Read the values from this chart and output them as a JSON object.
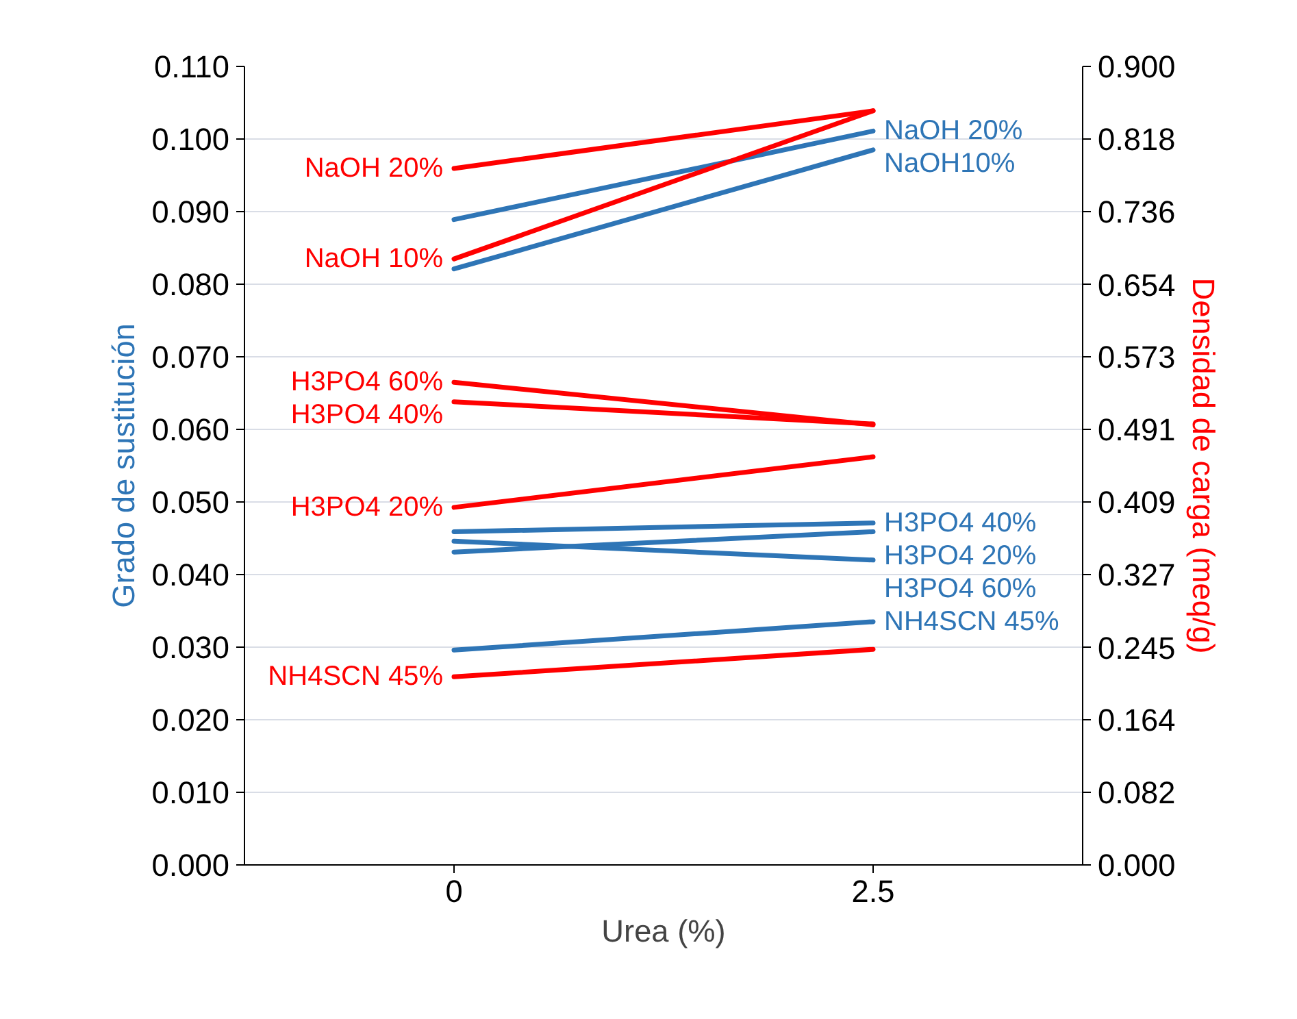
{
  "chart_data": {
    "type": "line",
    "xlabel": "Urea (%)",
    "ylabel": "Grado de sustitución",
    "y2label": "Densidad de carga (meq/g)",
    "categories": [
      "0",
      "2.5"
    ],
    "ylim": [
      0,
      0.11
    ],
    "yticks": [
      {
        "value": 0,
        "label": "0.000"
      },
      {
        "value": 0.01,
        "label": "0.010"
      },
      {
        "value": 0.02,
        "label": "0.020"
      },
      {
        "value": 0.03,
        "label": "0.030"
      },
      {
        "value": 0.04,
        "label": "0.040"
      },
      {
        "value": 0.05,
        "label": "0.050"
      },
      {
        "value": 0.06,
        "label": "0.060"
      },
      {
        "value": 0.07,
        "label": "0.070"
      },
      {
        "value": 0.08,
        "label": "0.080"
      },
      {
        "value": 0.09,
        "label": "0.090"
      },
      {
        "value": 0.1,
        "label": "0.100"
      },
      {
        "value": 0.11,
        "label": "0.110"
      }
    ],
    "y2lim": [
      0,
      0.9
    ],
    "y2ticks": [
      {
        "value": 0,
        "label": "0.000"
      },
      {
        "value": 0.082,
        "label": "0.082"
      },
      {
        "value": 0.164,
        "label": "0.164"
      },
      {
        "value": 0.245,
        "label": "0.245"
      },
      {
        "value": 0.327,
        "label": "0.327"
      },
      {
        "value": 0.409,
        "label": "0.409"
      },
      {
        "value": 0.491,
        "label": "0.491"
      },
      {
        "value": 0.573,
        "label": "0.573"
      },
      {
        "value": 0.654,
        "label": "0.654"
      },
      {
        "value": 0.736,
        "label": "0.736"
      },
      {
        "value": 0.818,
        "label": "0.818"
      },
      {
        "value": 0.9,
        "label": "0.900"
      }
    ],
    "grid": "y",
    "legend": false,
    "marker": "none",
    "line_style": "solid",
    "series": [
      {
        "name": "NaOH 20%",
        "color": "#2e75b6",
        "values": [
          0.0889,
          0.1011
        ]
      },
      {
        "name": "NaOH10%",
        "color": "#2e75b6",
        "values": [
          0.0821,
          0.0985
        ]
      },
      {
        "name": "H3PO4 40%",
        "color": "#2e75b6",
        "values": [
          0.0459,
          0.0471
        ]
      },
      {
        "name": "H3PO4 20%",
        "color": "#2e75b6",
        "values": [
          0.0431,
          0.0459
        ]
      },
      {
        "name": "H3PO4 60%",
        "color": "#2e75b6",
        "values": [
          0.0446,
          0.042
        ]
      },
      {
        "name": "NH4SCN 45%",
        "color": "#2e75b6",
        "values": [
          0.0296,
          0.0335
        ]
      },
      {
        "name": "NaOH 20%",
        "color": "#ff0000",
        "axis": "y2",
        "values": [
          0.785,
          0.85
        ]
      },
      {
        "name": "NaOH 10%",
        "color": "#ff0000",
        "axis": "y2",
        "values": [
          0.683,
          0.85
        ]
      },
      {
        "name": "H3PO4 60%",
        "color": "#ff0000",
        "axis": "y2",
        "values": [
          0.544,
          0.496
        ]
      },
      {
        "name": "H3PO4 40%",
        "color": "#ff0000",
        "axis": "y2",
        "values": [
          0.522,
          0.497
        ]
      },
      {
        "name": "H3PO4 20%",
        "color": "#ff0000",
        "axis": "y2",
        "values": [
          0.403,
          0.46
        ]
      },
      {
        "name": "NH4SCN 45%",
        "color": "#ff0000",
        "axis": "y2",
        "values": [
          0.212,
          0.243
        ]
      }
    ]
  }
}
